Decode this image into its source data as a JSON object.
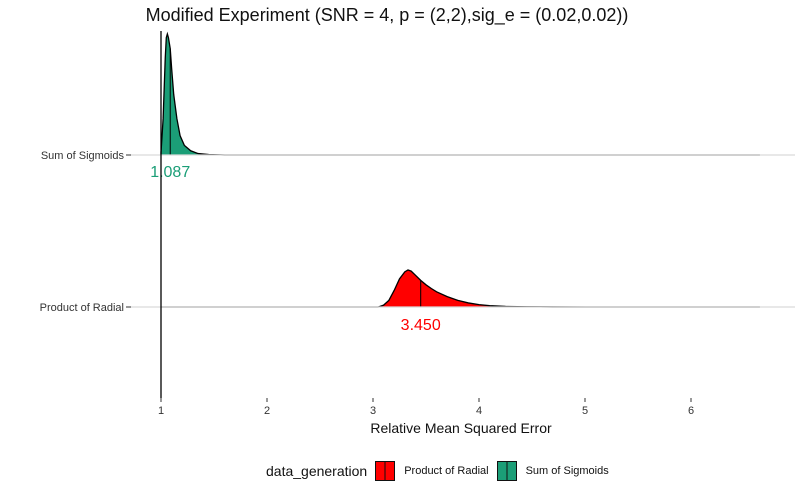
{
  "chart_data": {
    "type": "ridgeline-density",
    "title": "Modified Experiment (SNR = 4, p = (2,2),sig_e = (0.02,0.02))",
    "xlabel": "Relative Mean Squared Error",
    "ylabel": "",
    "xlim": [
      0.99,
      6.7
    ],
    "x_ticks": [
      1,
      2,
      3,
      4,
      5,
      6
    ],
    "categories": [
      "Product of Radial",
      "Sum of Sigmoids"
    ],
    "series": [
      {
        "name": "Sum of Sigmoids",
        "color": "#1b9e77",
        "median": 1.087,
        "median_label": "1.087",
        "x_range": [
          1.0,
          6.65
        ],
        "density": [
          [
            1.0,
            0.02
          ],
          [
            1.02,
            0.3
          ],
          [
            1.04,
            0.8
          ],
          [
            1.05,
            0.97
          ],
          [
            1.06,
            1.0
          ],
          [
            1.07,
            0.97
          ],
          [
            1.087,
            0.88
          ],
          [
            1.1,
            0.72
          ],
          [
            1.12,
            0.5
          ],
          [
            1.15,
            0.3
          ],
          [
            1.18,
            0.16
          ],
          [
            1.22,
            0.08
          ],
          [
            1.28,
            0.035
          ],
          [
            1.35,
            0.012
          ],
          [
            1.45,
            0.004
          ],
          [
            1.6,
            0.0
          ]
        ]
      },
      {
        "name": "Product of Radial",
        "color": "#ff0000",
        "median": 3.45,
        "median_label": "3.450",
        "x_range": [
          1.0,
          6.65
        ],
        "density": [
          [
            3.05,
            0.0
          ],
          [
            3.1,
            0.05
          ],
          [
            3.15,
            0.18
          ],
          [
            3.2,
            0.45
          ],
          [
            3.25,
            0.76
          ],
          [
            3.3,
            0.95
          ],
          [
            3.33,
            1.0
          ],
          [
            3.36,
            0.97
          ],
          [
            3.4,
            0.86
          ],
          [
            3.45,
            0.72
          ],
          [
            3.5,
            0.6
          ],
          [
            3.55,
            0.5
          ],
          [
            3.6,
            0.41
          ],
          [
            3.7,
            0.28
          ],
          [
            3.8,
            0.18
          ],
          [
            3.9,
            0.11
          ],
          [
            4.0,
            0.065
          ],
          [
            4.1,
            0.035
          ],
          [
            4.25,
            0.015
          ],
          [
            4.45,
            0.006
          ],
          [
            4.7,
            0.002
          ],
          [
            5.0,
            0.0
          ]
        ]
      }
    ],
    "legend": {
      "title": "data_generation",
      "position": "bottom",
      "entries": [
        {
          "label": "Product of Radial",
          "color": "#ff0000"
        },
        {
          "label": "Sum of Sigmoids",
          "color": "#1b9e77"
        }
      ]
    },
    "grid": false
  }
}
